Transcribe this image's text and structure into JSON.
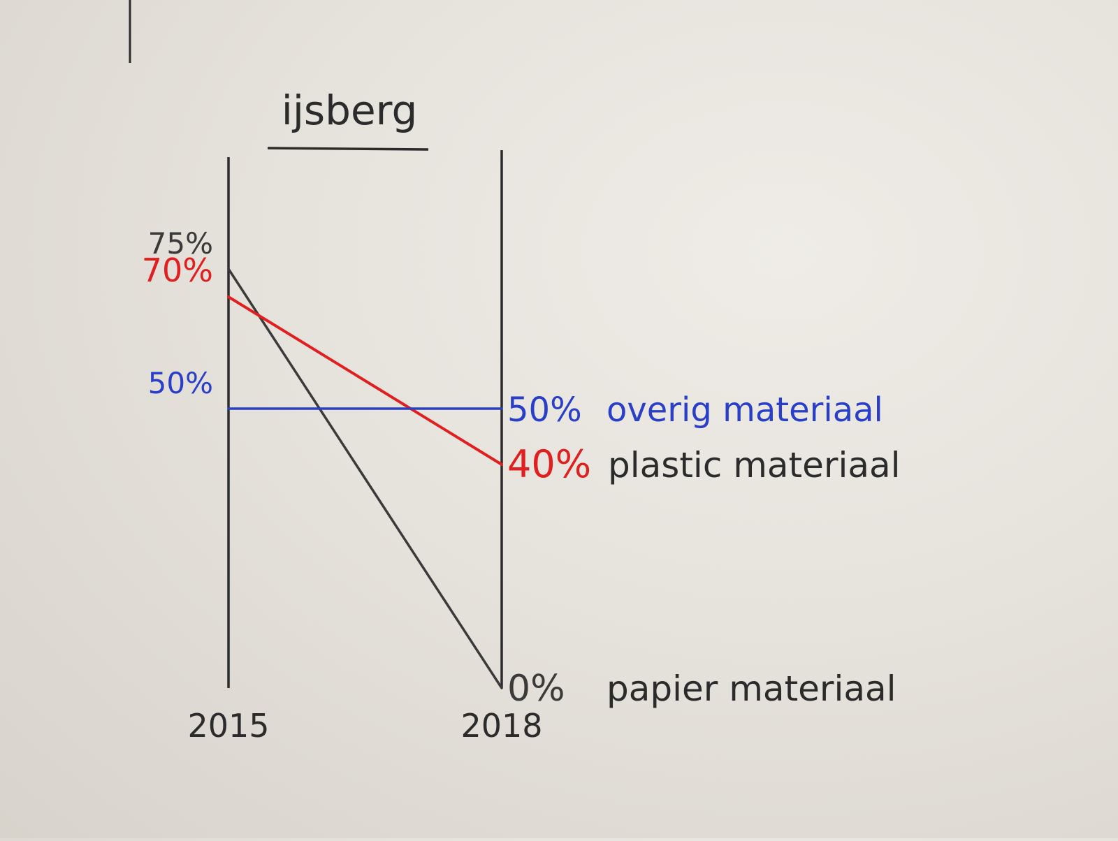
{
  "chart_data": {
    "type": "line",
    "title": "ijsberg",
    "x": [
      "2015",
      "2018"
    ],
    "ylim": [
      0,
      80
    ],
    "grid": false,
    "series": [
      {
        "name": "papier materiaal",
        "color": "#3a3a3a",
        "values": [
          75,
          0
        ],
        "start_label": "75%",
        "end_label": "0%"
      },
      {
        "name": "plastic materiaal",
        "color": "#e02020",
        "values": [
          70,
          40
        ],
        "start_label": "70%",
        "end_label": "40%"
      },
      {
        "name": "overig materiaal",
        "color": "#2a3fc8",
        "values": [
          50,
          50
        ],
        "start_label": "50%",
        "end_label": "50%"
      }
    ]
  }
}
